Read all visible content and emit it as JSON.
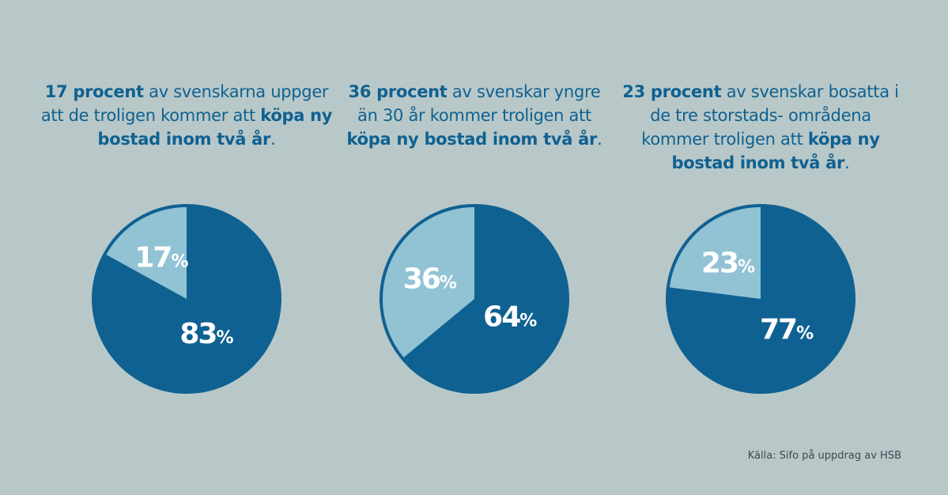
{
  "colors": {
    "background": "#b8c8c8",
    "dark": "#0f6191",
    "light": "#91c3d4",
    "label": "#ffffff"
  },
  "chart_data": [
    {
      "type": "pie",
      "title_segments": [
        {
          "text": "17 procent",
          "bold": true
        },
        {
          "text": " av svenskarna uppger att de troligen kommer att ",
          "bold": false
        },
        {
          "text": "köpa ny bostad inom två år",
          "bold": true
        },
        {
          "text": ".",
          "bold": false
        }
      ],
      "slices": [
        {
          "value": 17,
          "label": "17",
          "color": "#91c3d4"
        },
        {
          "value": 83,
          "label": "83",
          "color": "#0f6191"
        }
      ]
    },
    {
      "type": "pie",
      "title_segments": [
        {
          "text": "36 procent",
          "bold": true
        },
        {
          "text": " av svenskar yngre än 30 år kommer troligen att ",
          "bold": false
        },
        {
          "text": "köpa ny bostad inom två år",
          "bold": true
        },
        {
          "text": ".",
          "bold": false
        }
      ],
      "slices": [
        {
          "value": 36,
          "label": "36",
          "color": "#91c3d4"
        },
        {
          "value": 64,
          "label": "64",
          "color": "#0f6191"
        }
      ]
    },
    {
      "type": "pie",
      "title_segments": [
        {
          "text": "23 procent",
          "bold": true
        },
        {
          "text": " av svenskar bosatta i de tre storstads- områdena kommer troligen att ",
          "bold": false
        },
        {
          "text": "köpa ny bostad inom två år",
          "bold": true
        },
        {
          "text": ".",
          "bold": false
        }
      ],
      "slices": [
        {
          "value": 23,
          "label": "23",
          "color": "#91c3d4"
        },
        {
          "value": 77,
          "label": "77",
          "color": "#0f6191"
        }
      ]
    }
  ],
  "percent_sign": "%",
  "source": "Källa: Sifo på uppdrag av HSB"
}
